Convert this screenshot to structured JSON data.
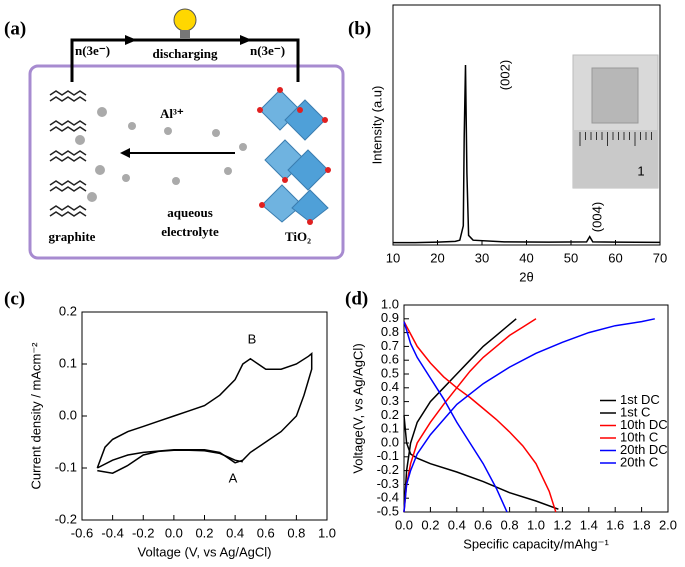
{
  "diagram": {
    "label": "(a)",
    "electron_left": "n(3e⁻)",
    "electron_right": "n(3e⁻)",
    "process": "discharging",
    "ion": "Al³⁺",
    "anode": "graphite",
    "electrolyte": [
      "aqueous",
      "electrolyte"
    ],
    "cathode": "TiO₂"
  },
  "chart_data": [
    {
      "type": "line",
      "label": "(b)",
      "xlabel": "2θ",
      "ylabel": "Intensity (a.u)",
      "annotations": [
        "(002)",
        "(004)",
        "1"
      ],
      "xlim": [
        10,
        70
      ],
      "xticks": [
        10,
        20,
        30,
        40,
        50,
        60,
        70
      ],
      "ylim": [
        0,
        100
      ],
      "series": [
        {
          "color": "#000000",
          "x": [
            10,
            15,
            20,
            24,
            25,
            25.8,
            26.0,
            26.3,
            26.6,
            27,
            28,
            35,
            45,
            53.5,
            54.2,
            54.9,
            60,
            70
          ],
          "values": [
            1,
            1,
            1.2,
            1.5,
            2,
            8,
            45,
            75,
            30,
            4,
            2,
            1.3,
            1.2,
            1.3,
            3.5,
            1.3,
            1.2,
            1.1
          ]
        }
      ]
    },
    {
      "type": "line",
      "label": "(c)",
      "xlabel": "Voltage (V, vs Ag/AgCl)",
      "ylabel": "Current density / mAcm⁻²",
      "annotations": [
        "B",
        "A"
      ],
      "xlim": [
        -0.6,
        1.0
      ],
      "xticks": [
        -0.6,
        -0.4,
        -0.2,
        {
          "value": 0,
          "label": "0.0"
        },
        0.2,
        0.4,
        0.6,
        0.8,
        {
          "value": 1,
          "label": "1.0"
        }
      ],
      "ylim": [
        -0.2,
        0.2
      ],
      "yticks": [
        -0.2,
        -0.1,
        {
          "value": 0,
          "label": "0.0"
        },
        0.1,
        0.2
      ],
      "series": [
        {
          "color": "#000000",
          "x": [
            -0.5,
            -0.45,
            -0.4,
            -0.3,
            -0.2,
            -0.1,
            0.0,
            0.1,
            0.2,
            0.3,
            0.4,
            0.45,
            0.5,
            0.55,
            0.6,
            0.7,
            0.8,
            0.88,
            0.9,
            0.9,
            0.85,
            0.8,
            0.7,
            0.6,
            0.5,
            0.45,
            0.4,
            0.35,
            0.3,
            0.2,
            0.0,
            -0.2,
            -0.3,
            -0.4,
            -0.5
          ],
          "values": [
            -0.1,
            -0.06,
            -0.045,
            -0.03,
            -0.02,
            -0.01,
            0.0,
            0.01,
            0.02,
            0.04,
            0.07,
            0.1,
            0.11,
            0.1,
            0.09,
            0.09,
            0.1,
            0.115,
            0.12,
            0.09,
            0.04,
            0.0,
            -0.03,
            -0.05,
            -0.07,
            -0.085,
            -0.09,
            -0.08,
            -0.07,
            -0.065,
            -0.065,
            -0.07,
            -0.075,
            -0.085,
            -0.1
          ]
        },
        {
          "color": "#000000",
          "x": [
            -0.5,
            -0.4,
            -0.3,
            -0.2,
            -0.1,
            0.0,
            0.1,
            0.2,
            0.3,
            0.4,
            0.45
          ],
          "values": [
            -0.105,
            -0.11,
            -0.095,
            -0.075,
            -0.068,
            -0.066,
            -0.066,
            -0.067,
            -0.072,
            -0.085,
            -0.088
          ]
        }
      ]
    },
    {
      "type": "line",
      "label": "(d)",
      "xlabel": "Specific capacity/mAhg⁻¹",
      "ylabel": "Voltage(V, vs Ag/AgCl)",
      "legend": "right",
      "xlim": [
        0,
        2
      ],
      "xticks": [
        {
          "value": 0,
          "label": "0.0"
        },
        0.2,
        0.4,
        0.6,
        0.8,
        {
          "value": 1,
          "label": "1.0"
        },
        1.2,
        1.4,
        1.6,
        1.8,
        {
          "value": 2,
          "label": "2.0"
        }
      ],
      "ylim": [
        -0.5,
        1.0
      ],
      "yticks": [
        -0.5,
        -0.4,
        -0.3,
        -0.2,
        -0.1,
        {
          "value": 0,
          "label": "0.0"
        },
        0.1,
        0.2,
        0.3,
        0.4,
        0.5,
        0.6,
        0.7,
        0.8,
        0.9,
        {
          "value": 1,
          "label": "1.0"
        }
      ],
      "series": [
        {
          "name": "1st DC",
          "color": "#000000",
          "x": [
            0,
            0.02,
            0.05,
            0.1,
            0.2,
            0.4,
            0.6,
            0.8,
            1.0,
            1.17
          ],
          "values": [
            0.2,
            0.0,
            -0.08,
            -0.11,
            -0.15,
            -0.21,
            -0.28,
            -0.36,
            -0.42,
            -0.48
          ]
        },
        {
          "name": "1st C",
          "color": "#000000",
          "x": [
            0,
            0.02,
            0.05,
            0.1,
            0.2,
            0.3,
            0.4,
            0.5,
            0.6,
            0.7,
            0.8,
            0.85
          ],
          "values": [
            -0.5,
            -0.2,
            0.0,
            0.15,
            0.3,
            0.4,
            0.5,
            0.6,
            0.7,
            0.78,
            0.86,
            0.9
          ]
        },
        {
          "name": "10th DC",
          "color": "#ff0000",
          "x": [
            0,
            0.1,
            0.2,
            0.3,
            0.4,
            0.5,
            0.6,
            0.7,
            0.8,
            0.9,
            1.0,
            1.1,
            1.15
          ],
          "values": [
            0.88,
            0.7,
            0.58,
            0.48,
            0.4,
            0.33,
            0.25,
            0.17,
            0.08,
            -0.02,
            -0.15,
            -0.35,
            -0.5
          ]
        },
        {
          "name": "10th C",
          "color": "#ff0000",
          "x": [
            0,
            0.02,
            0.05,
            0.1,
            0.2,
            0.3,
            0.4,
            0.5,
            0.6,
            0.7,
            0.8,
            0.9,
            1.0
          ],
          "values": [
            -0.5,
            -0.3,
            -0.15,
            0.0,
            0.15,
            0.28,
            0.4,
            0.52,
            0.62,
            0.7,
            0.78,
            0.84,
            0.9
          ]
        },
        {
          "name": "20th DC",
          "color": "#0000ff",
          "x": [
            0,
            0.05,
            0.1,
            0.2,
            0.3,
            0.4,
            0.5,
            0.6,
            0.7,
            0.78
          ],
          "values": [
            0.88,
            0.72,
            0.62,
            0.47,
            0.32,
            0.15,
            0.0,
            -0.15,
            -0.33,
            -0.5
          ]
        },
        {
          "name": "20th C",
          "color": "#0000ff",
          "x": [
            0,
            0.02,
            0.05,
            0.1,
            0.2,
            0.4,
            0.6,
            0.8,
            1.0,
            1.2,
            1.4,
            1.6,
            1.8,
            1.9
          ],
          "values": [
            -0.5,
            -0.3,
            -0.2,
            -0.08,
            0.06,
            0.28,
            0.43,
            0.55,
            0.65,
            0.73,
            0.8,
            0.85,
            0.88,
            0.9
          ]
        }
      ]
    }
  ]
}
